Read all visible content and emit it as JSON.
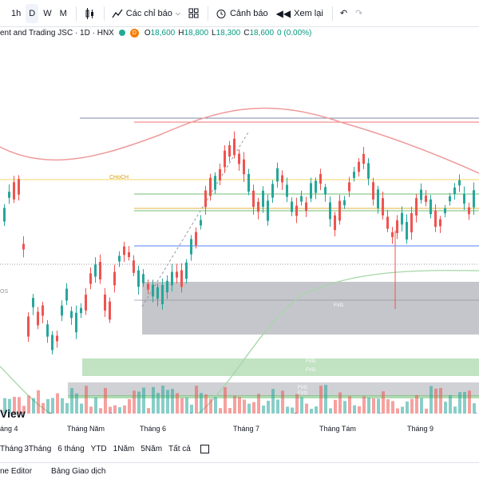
{
  "toolbar": {
    "intervals": [
      "1h",
      "D",
      "W",
      "M"
    ],
    "active_interval": "D",
    "indicators_label": "Các chỉ báo",
    "alert_label": "Cảnh báo",
    "replay_label": "Xem lại"
  },
  "symbol": {
    "name": "ent and Trading JSC · 1D · HNX",
    "flag": "D",
    "open_key": "O",
    "open": "18,600",
    "high_key": "H",
    "high": "18,800",
    "low_key": "L",
    "low": "18,300",
    "close_key": "C",
    "close": "18,600",
    "change": "0 (0.00%)"
  },
  "chart": {
    "choch_label": "CHoCH",
    "fvg_labels": [
      "FVG",
      "FVG",
      "FVG",
      "FVG",
      "FVG"
    ],
    "left_label_fragment": "OS",
    "watermark": "View",
    "event_markers": [
      "E",
      "D",
      "E",
      "D",
      "E",
      "D",
      "D"
    ],
    "colors": {
      "up": "#26a69a",
      "down": "#ef5350",
      "choch": "#f5d56a",
      "fvg_gray": "#9598a1",
      "fvg_green": "#4caf50",
      "curve_red": "#ef9a9a",
      "curve_green": "#a5d6a7"
    }
  },
  "time_axis": {
    "labels": [
      "áng 4",
      "Tháng Năm",
      "Tháng 6",
      "Tháng 7",
      "Tháng Tám",
      "Tháng 9"
    ]
  },
  "ranges": [
    "Tháng",
    "3Tháng",
    "6 tháng",
    "YTD",
    "1Năm",
    "5Năm",
    "Tất cả"
  ],
  "bottom_tabs": [
    "ne Editor",
    "Bảng Giao dịch"
  ]
}
